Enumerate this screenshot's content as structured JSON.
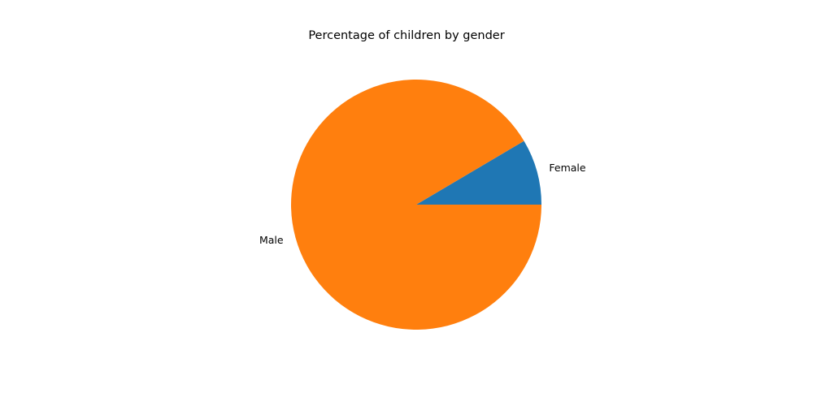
{
  "chart_data": {
    "type": "pie",
    "title": "Percentage of children by gender",
    "categories": [
      "Female",
      "Male"
    ],
    "values": [
      8.5,
      91.5
    ],
    "colors": [
      "#1f77b4",
      "#ff7f0e"
    ],
    "start_angle": 0,
    "direction": "counterclockwise",
    "legend": "none"
  }
}
